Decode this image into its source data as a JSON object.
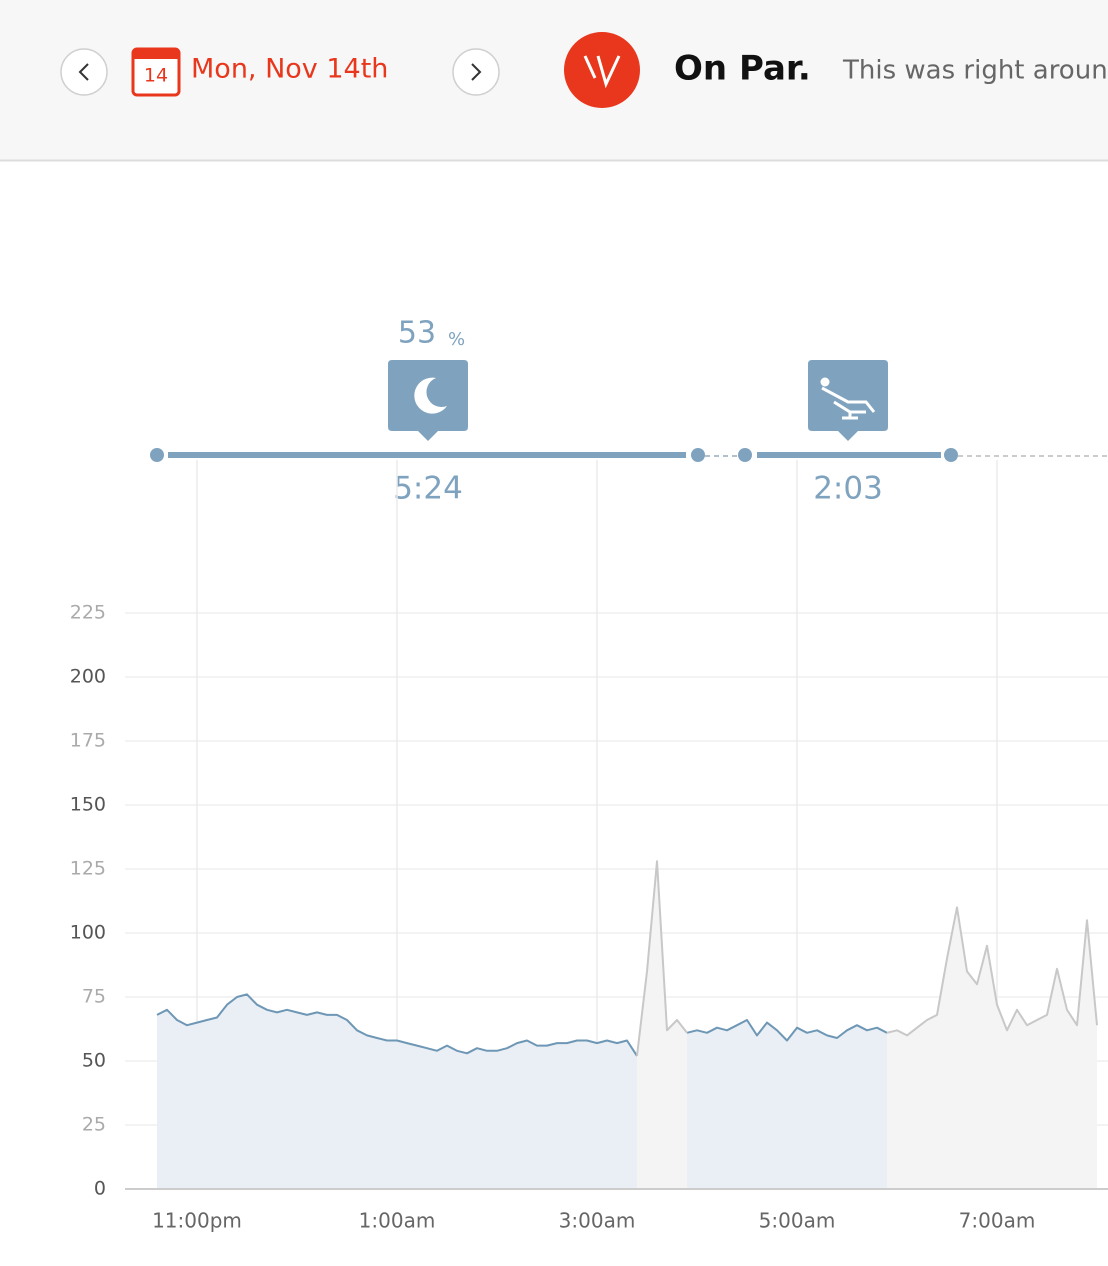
{
  "header": {
    "calendar_day": "14",
    "date": "Mon, Nov 14th",
    "title": "On Par.",
    "subtitle": "This was right around"
  },
  "sleep": {
    "performance": "53",
    "performance_unit": "%",
    "durations": [
      "5:24",
      "2:03"
    ]
  },
  "chart_data": {
    "type": "line",
    "x": [
      22.6,
      22.7,
      22.8,
      22.9,
      23.0,
      23.1,
      23.2,
      23.3,
      23.4,
      23.5,
      23.6,
      23.7,
      23.8,
      23.9,
      24.0,
      24.1,
      24.2,
      24.3,
      24.4,
      24.5,
      24.6,
      24.7,
      24.8,
      24.9,
      25.0,
      25.1,
      25.2,
      25.3,
      25.4,
      25.5,
      25.6,
      25.7,
      25.8,
      25.9,
      26.0,
      26.1,
      26.2,
      26.3,
      26.4,
      26.5,
      26.6,
      26.7,
      26.8,
      26.9,
      27.0,
      27.1,
      27.2,
      27.3,
      27.4,
      27.5,
      27.6,
      27.7,
      27.8,
      27.9,
      28.0,
      28.1,
      28.2,
      28.3,
      28.4,
      28.5,
      28.6,
      28.7,
      28.8,
      28.9,
      29.0,
      29.1,
      29.2,
      29.3,
      29.4,
      29.5,
      29.6,
      29.7,
      29.8,
      29.9,
      30.0,
      30.1,
      30.2,
      30.3,
      30.4,
      30.5,
      30.6,
      30.7,
      30.8,
      30.9,
      31.0,
      31.1,
      31.2,
      31.3,
      31.4,
      31.5,
      31.6,
      31.7,
      31.8,
      31.9,
      32.0
    ],
    "series": [
      {
        "color": "#6e97b5",
        "fill": "#e9eff4",
        "values": [
          68,
          70,
          66,
          64,
          65,
          66,
          67,
          72,
          75,
          76,
          72,
          70,
          69,
          70,
          69,
          68,
          69,
          68,
          68,
          66,
          62,
          60,
          59,
          58,
          58,
          57,
          56,
          55,
          54,
          56,
          54,
          53,
          55,
          54,
          54,
          55,
          57,
          58,
          56,
          56,
          57,
          57,
          58,
          58,
          57,
          58,
          57,
          58,
          52,
          null,
          null,
          null,
          null,
          61,
          62,
          61,
          63,
          62,
          64,
          66,
          60,
          65,
          62,
          58,
          63,
          61,
          62,
          60,
          59,
          62,
          64,
          62,
          63,
          61,
          null,
          null,
          null,
          null,
          null,
          null,
          null,
          null,
          null,
          null,
          null,
          null,
          null,
          null,
          null,
          null,
          null,
          null,
          null,
          null,
          null
        ]
      },
      {
        "color": "#c8c8c8",
        "fill": "#f4f4f4",
        "values": [
          null,
          null,
          null,
          null,
          null,
          null,
          null,
          null,
          null,
          null,
          null,
          null,
          null,
          null,
          null,
          null,
          null,
          null,
          null,
          null,
          null,
          null,
          null,
          null,
          null,
          null,
          null,
          null,
          null,
          null,
          null,
          null,
          null,
          null,
          null,
          null,
          null,
          null,
          null,
          null,
          null,
          null,
          null,
          null,
          null,
          null,
          null,
          null,
          52,
          85,
          128,
          62,
          66,
          61,
          null,
          null,
          null,
          null,
          null,
          null,
          null,
          null,
          null,
          null,
          null,
          null,
          null,
          null,
          null,
          null,
          null,
          null,
          null,
          61,
          62,
          60,
          63,
          66,
          68,
          90,
          110,
          85,
          80,
          95,
          72,
          62,
          70,
          64,
          66,
          68,
          86,
          70,
          64,
          105,
          64
        ]
      }
    ],
    "xlim": [
      22.28,
      32.11
    ],
    "xticks": [
      {
        "value": 23,
        "label": "11:00pm"
      },
      {
        "value": 25,
        "label": "1:00am"
      },
      {
        "value": 27,
        "label": "3:00am"
      },
      {
        "value": 29,
        "label": "5:00am"
      },
      {
        "value": 31,
        "label": "7:00am"
      }
    ],
    "ylim": [
      0,
      225
    ],
    "yticks": [
      0,
      25,
      50,
      75,
      100,
      125,
      150,
      175,
      200,
      225
    ],
    "grid": true
  }
}
